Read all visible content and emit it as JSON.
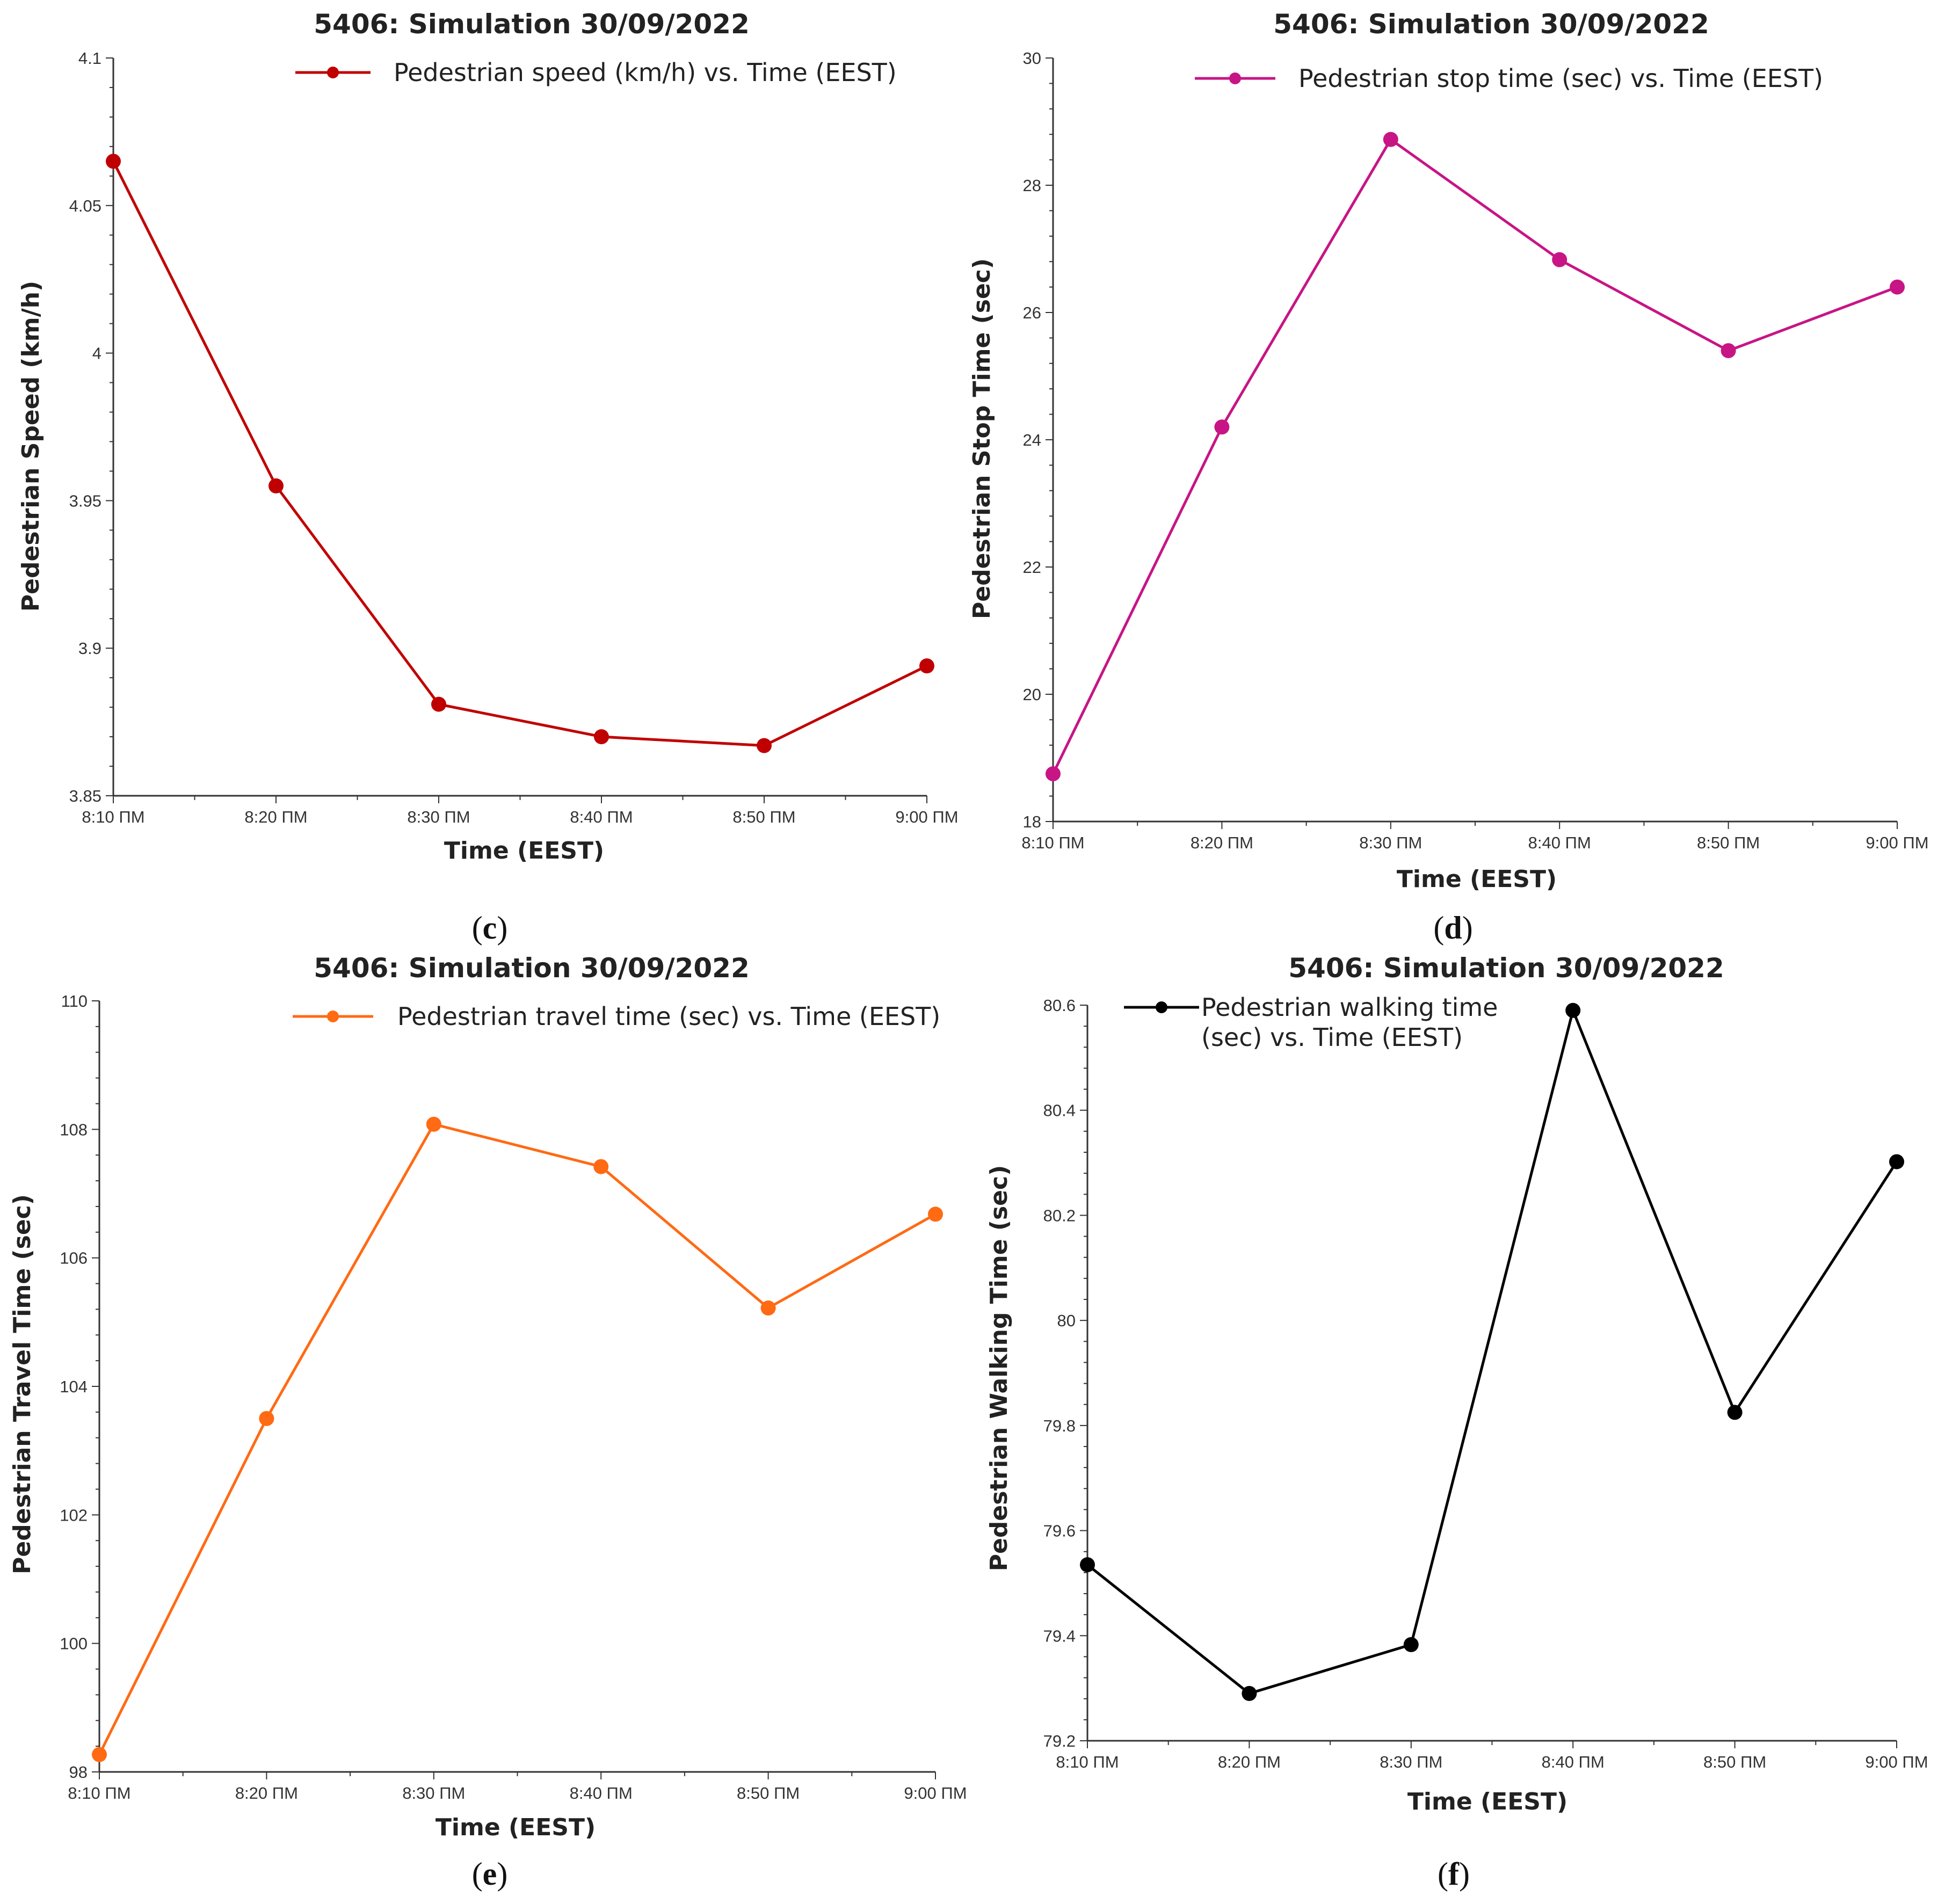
{
  "chart_data": [
    {
      "type": "line",
      "panel": "c",
      "title": "5406: Simulation 30/09/2022",
      "legend": "Pedestrian speed (km/h) vs. Time (EEST)",
      "xlabel": "Time (EEST)",
      "ylabel": "Pedestrian Speed (km/h)",
      "categories": [
        "8:10 ΠΜ",
        "8:20 ΠΜ",
        "8:30 ΠΜ",
        "8:40 ΠΜ",
        "8:50 ΠΜ",
        "9:00 ΠΜ"
      ],
      "values": [
        4.065,
        3.955,
        3.881,
        3.87,
        3.867,
        3.894
      ],
      "ylim": [
        3.85,
        4.1
      ],
      "yticks": [
        3.85,
        3.9,
        3.95,
        4,
        4.05,
        4.1
      ],
      "ytick_labels": [
        "3.85",
        "3.9",
        "3.95",
        "4",
        "4.05",
        "4.1"
      ],
      "color": "#c00000"
    },
    {
      "type": "line",
      "panel": "d",
      "title": "5406: Simulation 30/09/2022",
      "legend": "Pedestrian stop time (sec) vs. Time (EEST)",
      "xlabel": "Time (EEST)",
      "ylabel": "Pedestrian Stop Time (sec)",
      "categories": [
        "8:10 ΠΜ",
        "8:20 ΠΜ",
        "8:30 ΠΜ",
        "8:40 ΠΜ",
        "8:50 ΠΜ",
        "9:00 ΠΜ"
      ],
      "values": [
        18.75,
        24.2,
        28.72,
        26.83,
        25.4,
        26.4
      ],
      "ylim": [
        18,
        30
      ],
      "yticks": [
        18,
        20,
        22,
        24,
        26,
        28,
        30
      ],
      "ytick_labels": [
        "18",
        "20",
        "22",
        "24",
        "26",
        "28",
        "30"
      ],
      "color": "#c71585"
    },
    {
      "type": "line",
      "panel": "e",
      "title": "5406: Simulation 30/09/2022",
      "legend": "Pedestrian travel time (sec) vs. Time (EEST)",
      "xlabel": "Time (EEST)",
      "ylabel": "Pedestrian Travel Time (sec)",
      "categories": [
        "8:10 ΠΜ",
        "8:20 ΠΜ",
        "8:30 ΠΜ",
        "8:40 ΠΜ",
        "8:50 ΠΜ",
        "9:00 ΠΜ"
      ],
      "values": [
        98.27,
        103.5,
        108.08,
        107.42,
        105.22,
        106.68
      ],
      "ylim": [
        98,
        110
      ],
      "yticks": [
        98,
        100,
        102,
        104,
        106,
        108,
        110
      ],
      "ytick_labels": [
        "98",
        "100",
        "102",
        "104",
        "106",
        "108",
        "110"
      ],
      "color": "#ff6a13"
    },
    {
      "type": "line",
      "panel": "f",
      "title": "5406: Simulation 30/09/2022",
      "legend_lines": [
        "Pedestrian walking time",
        "(sec) vs. Time (EEST)"
      ],
      "xlabel": "Time (EEST)",
      "ylabel": "Pedestrian Walking Time (sec)",
      "categories": [
        "8:10 ΠΜ",
        "8:20 ΠΜ",
        "8:30 ΠΜ",
        "8:40 ΠΜ",
        "8:50 ΠΜ",
        "9:00 ΠΜ"
      ],
      "values": [
        79.535,
        79.29,
        79.383,
        80.59,
        79.825,
        80.302
      ],
      "ylim": [
        79.2,
        80.6
      ],
      "yticks": [
        79.2,
        79.4,
        79.6,
        79.8,
        80,
        80.2,
        80.4,
        80.6
      ],
      "ytick_labels": [
        "79.2",
        "79.4",
        "79.6",
        "79.8",
        "80",
        "80.2",
        "80.4",
        "80.6"
      ],
      "color": "#000000"
    }
  ],
  "panel_labels": [
    {
      "open": "(",
      "letter": "c",
      "close": ")"
    },
    {
      "open": "(",
      "letter": "d",
      "close": ")"
    },
    {
      "open": "(",
      "letter": "e",
      "close": ")"
    },
    {
      "open": "(",
      "letter": "f",
      "close": ")"
    }
  ]
}
